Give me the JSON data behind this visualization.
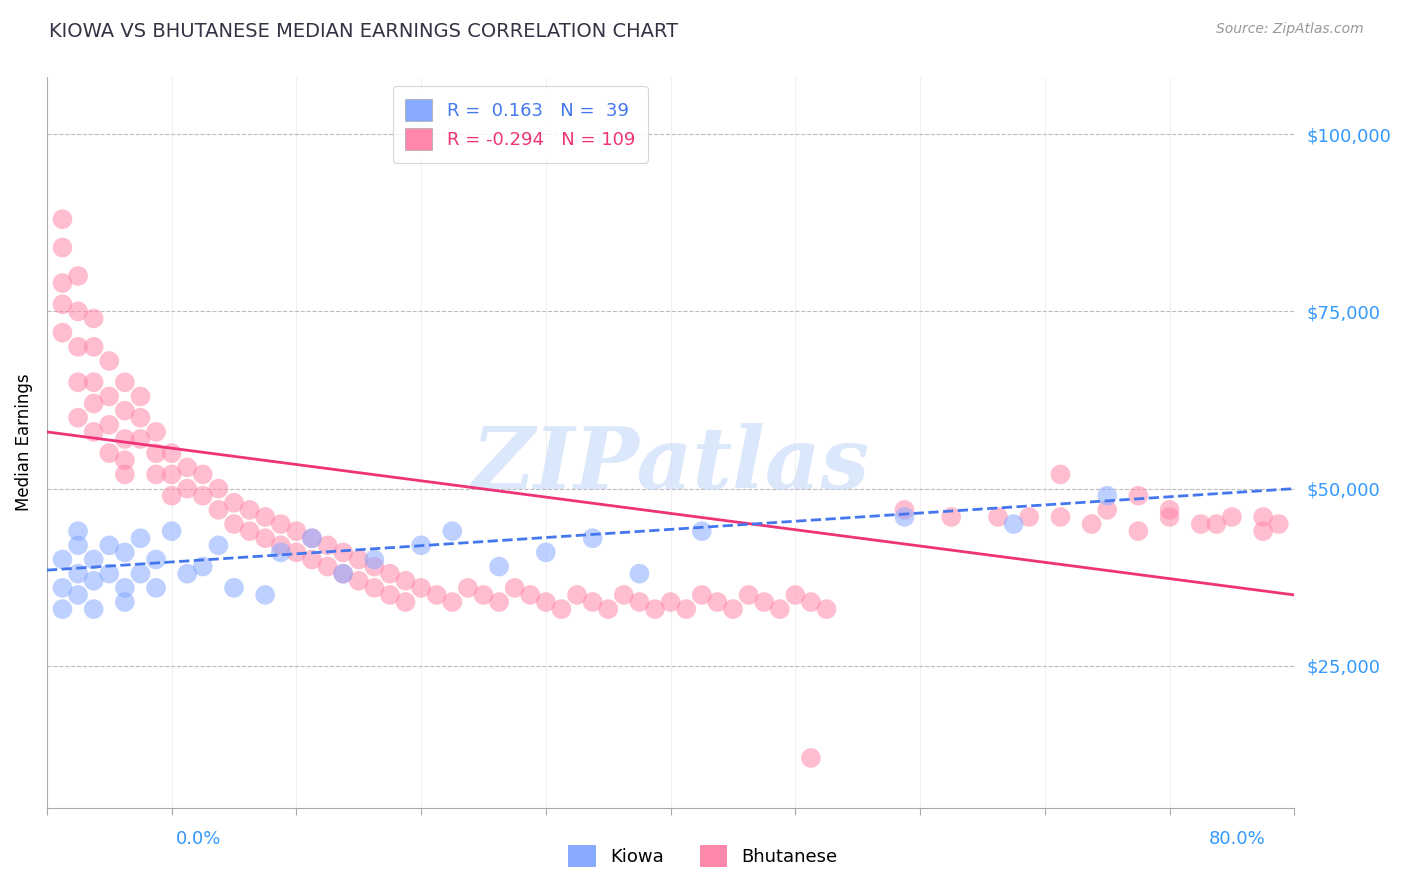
{
  "title": "KIOWA VS BHUTANESE MEDIAN EARNINGS CORRELATION CHART",
  "source": "Source: ZipAtlas.com",
  "ylabel_label": "Median Earnings",
  "y_ticks": [
    25000,
    50000,
    75000,
    100000
  ],
  "y_tick_labels": [
    "$25,000",
    "$50,000",
    "$75,000",
    "$100,000"
  ],
  "xmin": 0.0,
  "xmax": 80.0,
  "ymin": 5000,
  "ymax": 108000,
  "kiowa_R": 0.163,
  "kiowa_N": 39,
  "bhutanese_R": -0.294,
  "bhutanese_N": 109,
  "kiowa_color": "#88aaff",
  "bhutanese_color": "#ff88aa",
  "kiowa_trend_color": "#4477ee",
  "bhutanese_trend_color": "#ee3377",
  "watermark": "ZIPatlas",
  "watermark_color": "#ccddf8",
  "bg_color": "#ffffff",
  "title_color": "#333344",
  "axis_color": "#3399ff",
  "grid_color": "#bbbbbb",
  "source_color": "#999999",
  "kiowa_x": [
    1,
    1,
    1,
    2,
    2,
    2,
    2,
    3,
    3,
    3,
    4,
    4,
    5,
    5,
    5,
    6,
    6,
    7,
    7,
    8,
    9,
    10,
    11,
    12,
    14,
    15,
    17,
    19,
    21,
    24,
    26,
    29,
    32,
    35,
    38,
    42,
    55,
    62,
    68
  ],
  "kiowa_y": [
    36000,
    40000,
    33000,
    42000,
    38000,
    35000,
    44000,
    37000,
    40000,
    33000,
    38000,
    42000,
    36000,
    41000,
    34000,
    43000,
    38000,
    40000,
    36000,
    44000,
    38000,
    39000,
    42000,
    36000,
    35000,
    41000,
    43000,
    38000,
    40000,
    42000,
    44000,
    39000,
    41000,
    43000,
    38000,
    44000,
    46000,
    45000,
    49000
  ],
  "bhutanese_x": [
    1,
    1,
    1,
    1,
    1,
    2,
    2,
    2,
    2,
    2,
    3,
    3,
    3,
    3,
    3,
    4,
    4,
    4,
    4,
    5,
    5,
    5,
    5,
    5,
    6,
    6,
    6,
    7,
    7,
    7,
    8,
    8,
    8,
    9,
    9,
    10,
    10,
    11,
    11,
    12,
    12,
    13,
    13,
    14,
    14,
    15,
    15,
    16,
    16,
    17,
    17,
    18,
    18,
    19,
    19,
    20,
    20,
    21,
    21,
    22,
    22,
    23,
    23,
    24,
    25,
    26,
    27,
    28,
    29,
    30,
    31,
    32,
    33,
    34,
    35,
    36,
    37,
    38,
    39,
    40,
    41,
    42,
    43,
    44,
    45,
    46,
    47,
    48,
    49,
    50,
    55,
    58,
    61,
    63,
    65,
    67,
    68,
    70,
    72,
    74,
    76,
    78,
    79,
    49,
    65,
    70,
    72,
    75,
    78
  ],
  "bhutanese_y": [
    88000,
    84000,
    79000,
    76000,
    72000,
    80000,
    75000,
    70000,
    65000,
    60000,
    74000,
    70000,
    65000,
    62000,
    58000,
    68000,
    63000,
    59000,
    55000,
    65000,
    61000,
    57000,
    54000,
    52000,
    63000,
    60000,
    57000,
    58000,
    55000,
    52000,
    55000,
    52000,
    49000,
    53000,
    50000,
    52000,
    49000,
    50000,
    47000,
    48000,
    45000,
    47000,
    44000,
    46000,
    43000,
    45000,
    42000,
    44000,
    41000,
    43000,
    40000,
    42000,
    39000,
    41000,
    38000,
    40000,
    37000,
    39000,
    36000,
    38000,
    35000,
    37000,
    34000,
    36000,
    35000,
    34000,
    36000,
    35000,
    34000,
    36000,
    35000,
    34000,
    33000,
    35000,
    34000,
    33000,
    35000,
    34000,
    33000,
    34000,
    33000,
    35000,
    34000,
    33000,
    35000,
    34000,
    33000,
    35000,
    34000,
    33000,
    47000,
    46000,
    46000,
    46000,
    46000,
    45000,
    47000,
    44000,
    46000,
    45000,
    46000,
    44000,
    45000,
    12000,
    52000,
    49000,
    47000,
    45000,
    46000
  ],
  "kiowa_trend_x0": 0,
  "kiowa_trend_y0": 38500,
  "kiowa_trend_x1": 80,
  "kiowa_trend_y1": 50000,
  "bhu_trend_x0": 0,
  "bhu_trend_y0": 58000,
  "bhu_trend_x1": 80,
  "bhu_trend_y1": 35000
}
